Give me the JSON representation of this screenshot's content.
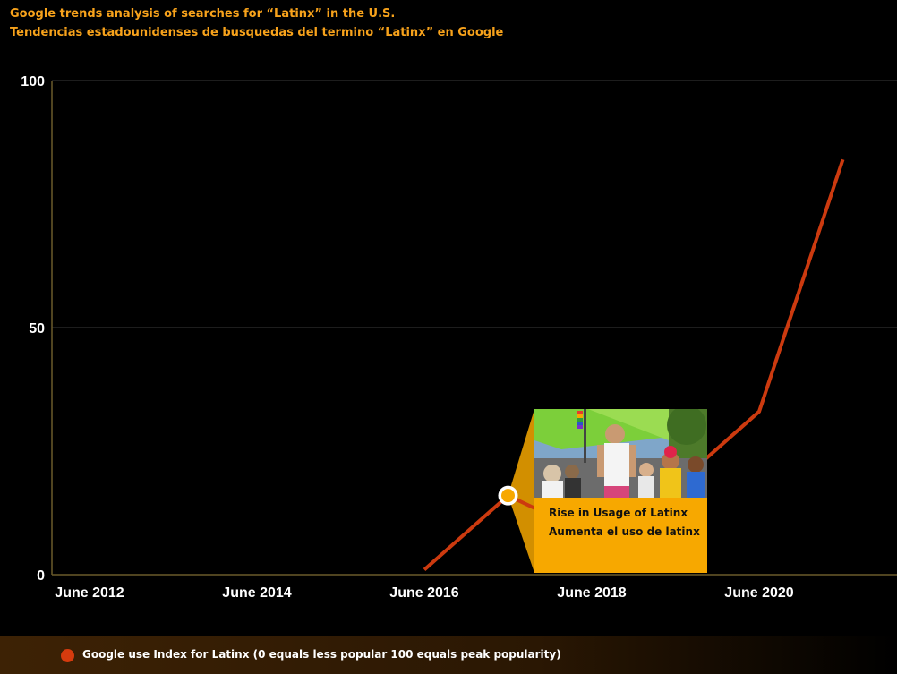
{
  "header": {
    "title_en": "Google trends analysis of searches for “Latinx” in the U.S.",
    "title_es": "Tendencias estadounidenses de busquedas del termino “Latinx” en Google"
  },
  "callout": {
    "line1": "Rise in Usage of Latinx",
    "line2": "Aumenta el uso de latinx"
  },
  "legend": {
    "label": "Google use Index for Latinx (0 equals less popular 100 equals peak popularity)"
  },
  "colors": {
    "line": "#cc3a0f",
    "accent": "#f7a800",
    "title": "#f7a21b",
    "grid": "#3a3a3a",
    "axis": "#6b5a2a"
  },
  "chart_data": {
    "type": "line",
    "title": "Google trends analysis of searches for “Latinx” in the U.S.",
    "xlabel": "",
    "ylabel": "",
    "x_ticks": [
      "June 2012",
      "June 2014",
      "June 2016",
      "June 2018",
      "June 2020"
    ],
    "y_ticks": [
      0,
      50,
      100
    ],
    "ylim": [
      0,
      100
    ],
    "xlim": [
      "2012-06",
      "2022-06"
    ],
    "grid": "horizontal",
    "legend_position": "bottom",
    "series": [
      {
        "name": "Google use Index for Latinx (0 equals less popular 100 equals peak popularity)",
        "points": [
          {
            "x": "2016-06",
            "y": 1
          },
          {
            "x": "2017-06",
            "y": 16
          },
          {
            "x": "2018-06",
            "y": 8
          },
          {
            "x": "2019-06",
            "y": 18
          },
          {
            "x": "2020-06",
            "y": 33
          },
          {
            "x": "2021-06",
            "y": 84
          }
        ]
      }
    ],
    "highlight_point": {
      "x": "2017-06",
      "y": 16
    }
  }
}
